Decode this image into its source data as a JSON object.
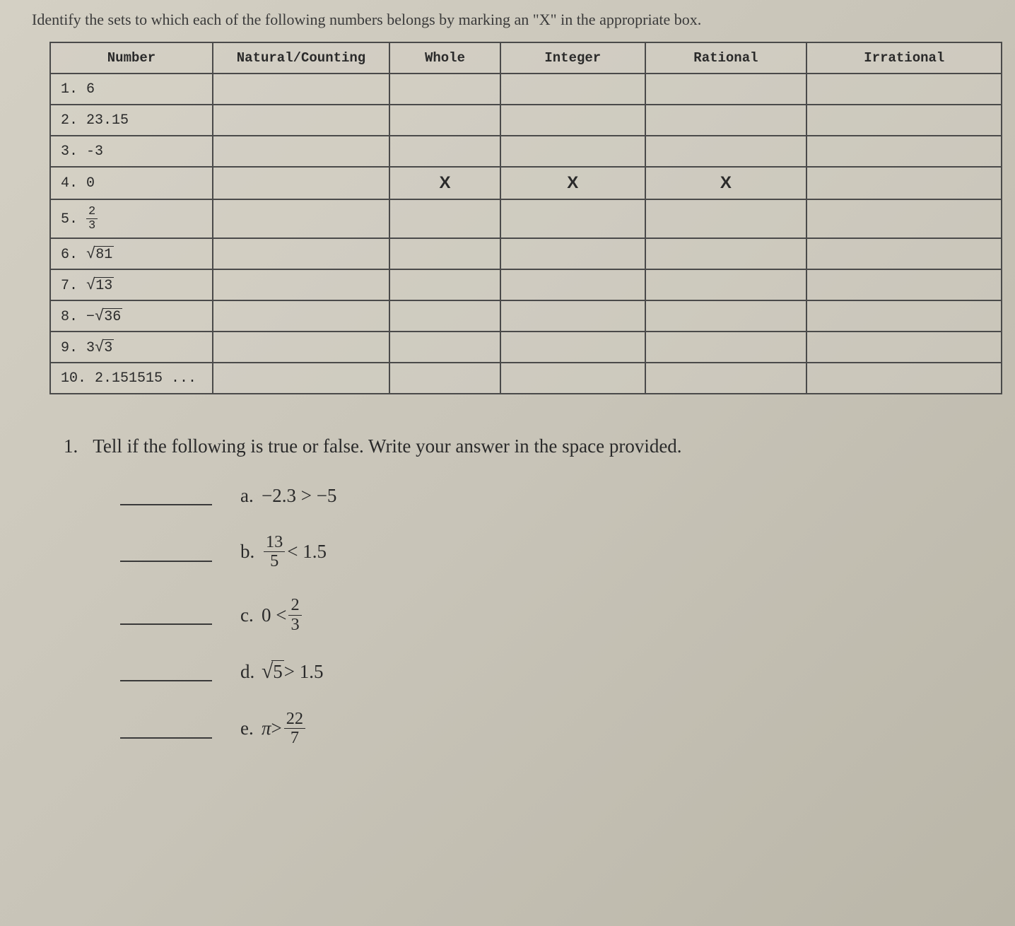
{
  "instruction": "Identify the sets to which each of the following numbers belongs by marking an \"X\" in the appropriate box.",
  "table": {
    "headers": [
      "Number",
      "Natural/Counting",
      "Whole",
      "Integer",
      "Rational",
      "Irrational"
    ],
    "rows": [
      {
        "label": "1. 6",
        "type": "plain",
        "marks": [
          "",
          "",
          "",
          "",
          ""
        ]
      },
      {
        "label": "2. 23.15",
        "type": "plain",
        "marks": [
          "",
          "",
          "",
          "",
          ""
        ]
      },
      {
        "label": "3. -3",
        "type": "plain",
        "marks": [
          "",
          "",
          "",
          "",
          ""
        ]
      },
      {
        "label": "4. 0",
        "type": "plain",
        "marks": [
          "",
          "X",
          "X",
          "X",
          ""
        ]
      },
      {
        "label": "5. ",
        "type": "frac",
        "num": "2",
        "den": "3",
        "marks": [
          "",
          "",
          "",
          "",
          ""
        ]
      },
      {
        "label": "6. ",
        "type": "sqrt",
        "radicand": "81",
        "marks": [
          "",
          "",
          "",
          "",
          ""
        ]
      },
      {
        "label": "7. ",
        "type": "sqrt",
        "radicand": "13",
        "marks": [
          "",
          "",
          "",
          "",
          ""
        ]
      },
      {
        "label": "8. −",
        "type": "sqrt",
        "radicand": "36",
        "marks": [
          "",
          "",
          "",
          "",
          ""
        ]
      },
      {
        "label": "9. 3",
        "type": "sqrt",
        "radicand": "3",
        "marks": [
          "",
          "",
          "",
          "",
          ""
        ]
      },
      {
        "label": "10. 2.151515 ...",
        "type": "plain",
        "marks": [
          "",
          "",
          "",
          "",
          ""
        ]
      }
    ]
  },
  "question": {
    "number": "1.",
    "text": "Tell if the following is true or false. Write your answer in the space provided.",
    "items": [
      {
        "letter": "a.",
        "expr_type": "plain",
        "expr": "−2.3 > −5"
      },
      {
        "letter": "b.",
        "expr_type": "frac_ineq",
        "num": "13",
        "den": "5",
        "op": "<",
        "rhs": "1.5"
      },
      {
        "letter": "c.",
        "expr_type": "num_ineq_frac",
        "lhs": "0",
        "op": "<",
        "num": "2",
        "den": "3"
      },
      {
        "letter": "d.",
        "expr_type": "sqrt_ineq",
        "radicand": "5",
        "op": ">",
        "rhs": "1.5"
      },
      {
        "letter": "e.",
        "expr_type": "pi_ineq_frac",
        "lhs": "π",
        "op": ">",
        "num": "22",
        "den": "7"
      }
    ]
  },
  "colors": {
    "background_start": "#d4d0c4",
    "background_end": "#bab6a8",
    "text": "#2a2a2a",
    "border": "#4a4a4a"
  },
  "fonts": {
    "body": "Georgia, Times New Roman, serif",
    "mono": "Courier New, monospace",
    "instruction_size": 22,
    "table_header_size": 19,
    "table_cell_size": 20,
    "question_size": 27
  }
}
